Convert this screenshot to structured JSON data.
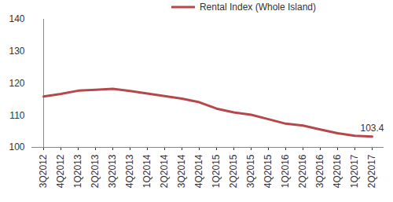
{
  "chart_data": {
    "type": "line",
    "categories": [
      "3Q2012",
      "4Q2012",
      "1Q2013",
      "2Q2013",
      "3Q2013",
      "4Q2013",
      "1Q2014",
      "2Q2014",
      "3Q2014",
      "4Q2014",
      "1Q2015",
      "2Q2015",
      "3Q2015",
      "4Q2015",
      "1Q2016",
      "2Q2016",
      "3Q2016",
      "4Q2016",
      "1Q2017",
      "2Q2017"
    ],
    "series": [
      {
        "name": "Rental Index (Whole Island)",
        "color": "#b5484a",
        "values": [
          115.9,
          116.7,
          117.7,
          118.0,
          118.3,
          117.6,
          116.8,
          116.0,
          115.2,
          114.1,
          112.1,
          110.9,
          110.2,
          108.8,
          107.4,
          106.8,
          105.6,
          104.4,
          103.6,
          103.4
        ]
      }
    ],
    "ylim": [
      100,
      140
    ],
    "yticks": [
      100,
      110,
      120,
      130,
      140
    ],
    "grid": false,
    "legend": "top",
    "annotations": [
      {
        "x": "2Q2017",
        "text": "103.4"
      }
    ]
  }
}
